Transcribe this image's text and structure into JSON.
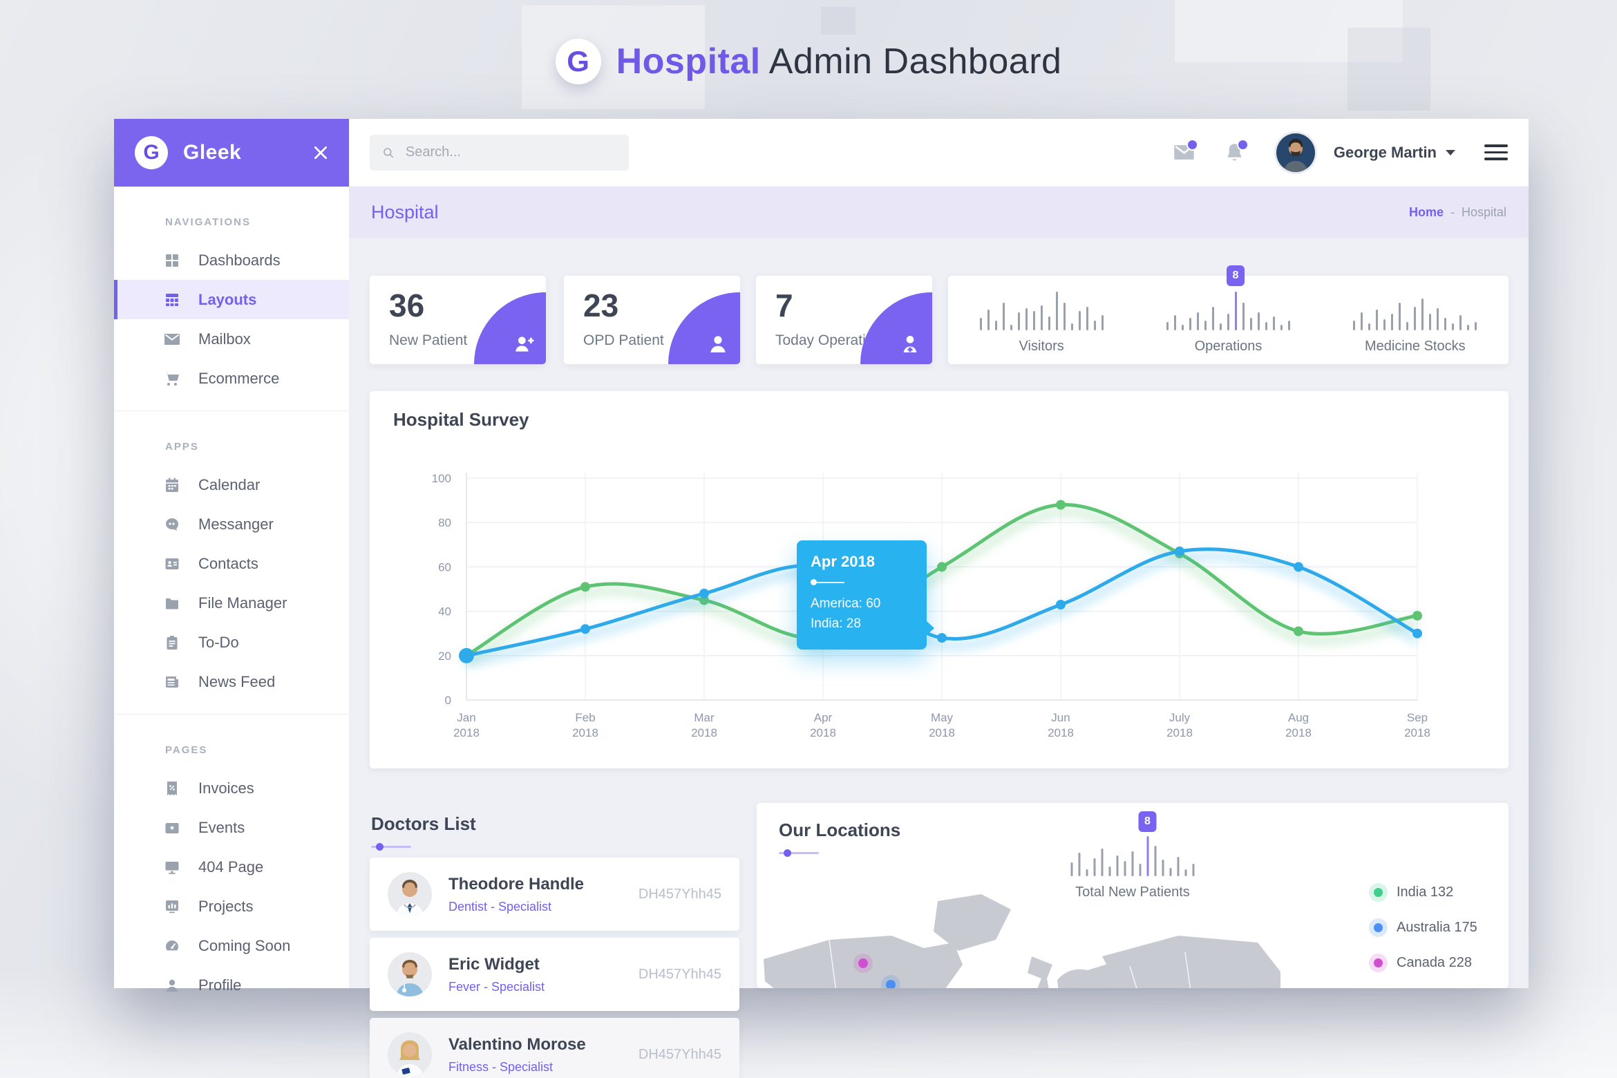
{
  "page": {
    "logo_letter": "G",
    "title_highlight": "Hospital",
    "title_rest": "Admin Dashboard"
  },
  "sidebar": {
    "logo_letter": "G",
    "brand": "Gleek",
    "sections": [
      {
        "label": "NAVIGATIONS",
        "items": [
          {
            "label": "Dashboards",
            "icon": "grid-icon"
          },
          {
            "label": "Layouts",
            "icon": "layout-icon",
            "active": true
          },
          {
            "label": "Mailbox",
            "icon": "mail-icon"
          },
          {
            "label": "Ecommerce",
            "icon": "cart-icon"
          }
        ]
      },
      {
        "label": "APPS",
        "items": [
          {
            "label": "Calendar",
            "icon": "calendar-icon"
          },
          {
            "label": "Messanger",
            "icon": "chat-icon"
          },
          {
            "label": "Contacts",
            "icon": "contact-card-icon"
          },
          {
            "label": "File Manager",
            "icon": "folder-icon"
          },
          {
            "label": "To-Do",
            "icon": "clipboard-icon"
          },
          {
            "label": "News Feed",
            "icon": "newspaper-icon"
          }
        ]
      },
      {
        "label": "PAGES",
        "items": [
          {
            "label": "Invoices",
            "icon": "invoice-icon"
          },
          {
            "label": "Events",
            "icon": "event-icon"
          },
          {
            "label": "404 Page",
            "icon": "monitor-icon"
          },
          {
            "label": "Projects",
            "icon": "chart-board-icon"
          },
          {
            "label": "Coming Soon",
            "icon": "gauge-icon"
          },
          {
            "label": "Profile",
            "icon": "user-icon"
          }
        ]
      }
    ]
  },
  "topbar": {
    "search_placeholder": "Search...",
    "user_name": "George Martin"
  },
  "breadcrumb": {
    "title": "Hospital",
    "home": "Home",
    "separator": "-",
    "current": "Hospital"
  },
  "stats": [
    {
      "value": "36",
      "label": "New Patient",
      "icon": "person-add-icon"
    },
    {
      "value": "23",
      "label": "OPD Patient",
      "icon": "person-icon"
    },
    {
      "value": "7",
      "label": "Today Operations",
      "icon": "doctor-icon"
    }
  ],
  "doctors": {
    "title": "Doctors List",
    "items": [
      {
        "name": "Theodore Handle",
        "specialty": "Dentist - Specialist",
        "id": "DH457Yhh45",
        "avatar": "doctor-avatar-male-1"
      },
      {
        "name": "Eric Widget",
        "specialty": "Fever - Specialist",
        "id": "DH457Yhh45",
        "avatar": "doctor-avatar-male-2"
      },
      {
        "name": "Valentino Morose",
        "specialty": "Fitness - Specialist",
        "id": "DH457Yhh45",
        "avatar": "doctor-avatar-female-1"
      }
    ]
  },
  "locations": {
    "title": "Our Locations",
    "legend": [
      {
        "label": "India",
        "value": "132",
        "color": "#3ecf8e"
      },
      {
        "label": "Australia",
        "value": "175",
        "color": "#4a90f4"
      },
      {
        "label": "Canada",
        "value": "228",
        "color": "#d04fd0"
      }
    ]
  },
  "colors": {
    "accent_purple": "#7460ee",
    "sidebar_header_purple": "#7b64ee",
    "quarter_circle_purple": "#7a63f1",
    "tooltip_blue": "#29b2f0",
    "line_america_blue": "#2ea9ea",
    "line_india_green": "#5ec473",
    "breadcrumb_bg": "#e9e6f8",
    "content_bg": "#eef0f6"
  },
  "chart_data": [
    {
      "id": "hospital-survey",
      "type": "line",
      "title": "Hospital Survey",
      "x": [
        "Jan 2018",
        "Feb 2018",
        "Mar 2018",
        "Apr 2018",
        "May 2018",
        "Jun 2018",
        "July 2018",
        "Aug 2018",
        "Sep 2018"
      ],
      "ylim": [
        0,
        100
      ],
      "yticks": [
        0,
        20,
        40,
        60,
        80,
        100
      ],
      "grid": true,
      "legend_position": "none",
      "series": [
        {
          "name": "America",
          "color": "#2ea9ea",
          "values": [
            20,
            32,
            48,
            60,
            28,
            43,
            67,
            60,
            30
          ]
        },
        {
          "name": "India",
          "color": "#5ec473",
          "values": [
            20,
            51,
            45,
            28,
            60,
            88,
            66,
            31,
            38
          ]
        }
      ],
      "tooltip": {
        "title": "Apr 2018",
        "entries": [
          "America: 60",
          "India: 28"
        ]
      }
    },
    {
      "id": "visitors",
      "type": "bar",
      "label": "Visitors",
      "values": [
        18,
        30,
        14,
        40,
        8,
        26,
        32,
        28,
        36,
        20,
        56,
        40,
        10,
        28,
        34,
        14,
        22
      ]
    },
    {
      "id": "operations",
      "type": "bar",
      "label": "Operations",
      "badge": "8",
      "badge_index": 9,
      "values": [
        12,
        22,
        8,
        18,
        26,
        14,
        34,
        10,
        24,
        56,
        40,
        18,
        26,
        12,
        20,
        8,
        14
      ]
    },
    {
      "id": "medicine-stocks",
      "type": "bar",
      "label": "Medicine Stocks",
      "values": [
        14,
        26,
        10,
        30,
        16,
        24,
        40,
        12,
        34,
        46,
        24,
        32,
        18,
        10,
        22,
        8,
        12
      ]
    },
    {
      "id": "total-new-patients",
      "type": "bar",
      "label": "Total New Patients",
      "badge": "8",
      "badge_index": 10,
      "values": [
        20,
        34,
        10,
        26,
        40,
        14,
        30,
        22,
        36,
        18,
        58,
        44,
        24,
        12,
        28,
        10,
        18
      ]
    }
  ]
}
